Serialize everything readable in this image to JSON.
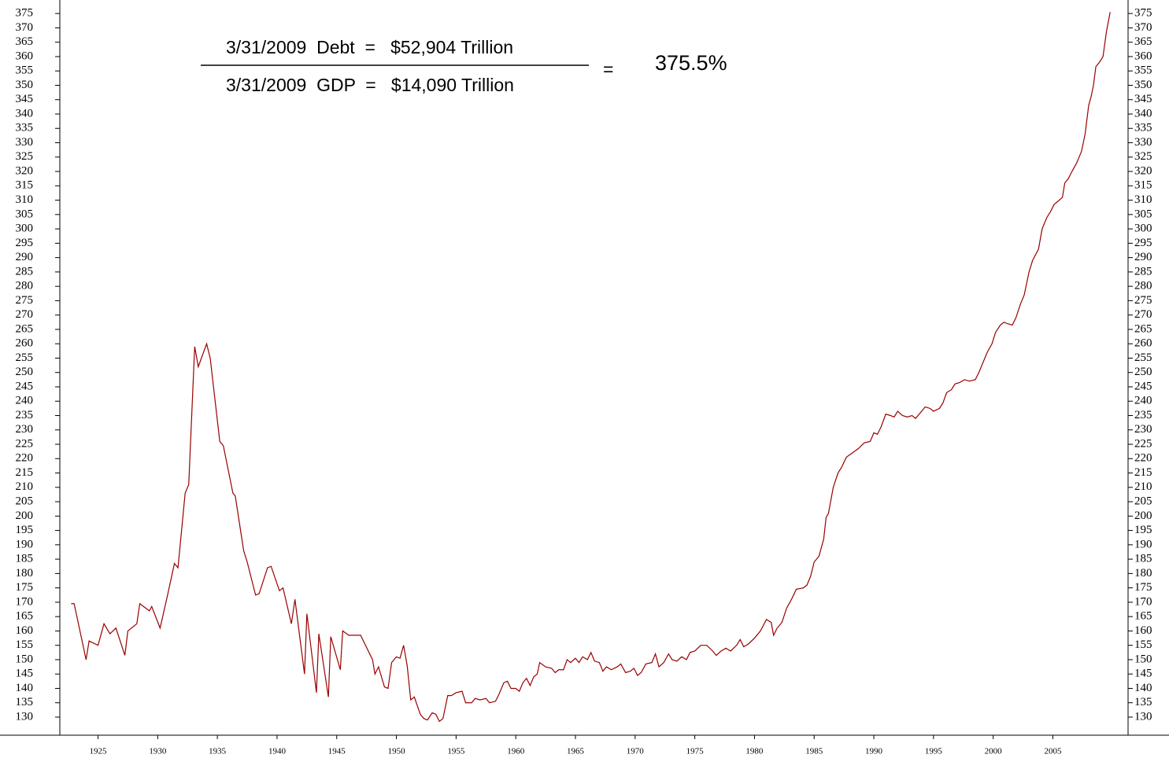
{
  "chart_data": {
    "type": "line",
    "annotations": {
      "numerator": "3/31/2009  Debt  =   $52,904 Trillion",
      "denominator": "3/31/2009  GDP  =   $14,090 Trillion",
      "equals": "=",
      "result": "375.5%"
    },
    "series": [
      {
        "color": "#990000",
        "x": [
          1922.75,
          1923,
          1924,
          1924.25,
          1925,
          1925.5,
          1926,
          1926.5,
          1927.25,
          1927.5,
          1928.25,
          1928.5,
          1929.3,
          1929.5,
          1930.2,
          1930.8,
          1931.4,
          1931.7,
          1932.3,
          1932.6,
          1933.1,
          1933.4,
          1934.1,
          1934.4,
          1935.2,
          1935.5,
          1936.3,
          1936.5,
          1937.2,
          1937.5,
          1938.2,
          1938.5,
          1939.2,
          1939.5,
          1940.2,
          1940.5,
          1941.2,
          1941.5,
          1942.3,
          1942.5,
          1943.3,
          1943.5,
          1944.3,
          1944.5,
          1945.3,
          1945.5,
          1946,
          1947,
          1948,
          1948.2,
          1948.5,
          1949,
          1949.3,
          1949.6,
          1950,
          1950.3,
          1950.6,
          1950.9,
          1951.2,
          1951.5,
          1952,
          1952.3,
          1952.6,
          1953,
          1953.3,
          1953.6,
          1953.9,
          1954.3,
          1954.6,
          1955,
          1955.5,
          1955.8,
          1956.3,
          1956.6,
          1957,
          1957.5,
          1957.8,
          1958.3,
          1958.6,
          1959,
          1959.3,
          1959.6,
          1960,
          1960.3,
          1960.6,
          1960.9,
          1961.2,
          1961.5,
          1961.8,
          1962,
          1962.5,
          1963,
          1963.3,
          1963.6,
          1964,
          1964.3,
          1964.6,
          1965,
          1965.3,
          1965.6,
          1966,
          1966.3,
          1966.6,
          1967,
          1967.3,
          1967.6,
          1968,
          1968.5,
          1968.8,
          1969.2,
          1969.6,
          1969.9,
          1970.2,
          1970.5,
          1970.9,
          1971.4,
          1971.7,
          1972,
          1972.4,
          1972.8,
          1973.1,
          1973.5,
          1973.9,
          1974.3,
          1974.6,
          1975,
          1975.5,
          1976,
          1976.5,
          1976.8,
          1977.2,
          1977.6,
          1978,
          1978.5,
          1978.8,
          1979.1,
          1979.5,
          1980,
          1980.5,
          1981,
          1981.4,
          1981.6,
          1981.9,
          1982.3,
          1982.7,
          1983.1,
          1983.5,
          1984.1,
          1984.4,
          1984.7,
          1985,
          1985.4,
          1985.8,
          1986,
          1986.2,
          1986.6,
          1987,
          1987.3,
          1987.7,
          1988.2,
          1988.7,
          1989.2,
          1989.7,
          1990,
          1990.3,
          1990.6,
          1991,
          1991.4,
          1991.7,
          1992,
          1992.4,
          1992.8,
          1993.2,
          1993.5,
          1993.9,
          1994.3,
          1994.7,
          1995,
          1995.5,
          1995.8,
          1996.1,
          1996.5,
          1996.8,
          1997.2,
          1997.6,
          1998,
          1998.5,
          1998.8,
          1999.1,
          1999.5,
          1999.9,
          2000.2,
          2000.6,
          2000.9,
          2001.2,
          2001.6,
          2001.9,
          2002.3,
          2002.6,
          2003,
          2003.3,
          2003.8,
          2004.1,
          2004.5,
          2004.8,
          2005.1,
          2005.4,
          2005.8,
          2006,
          2006.3,
          2006.6,
          2007,
          2007.4,
          2007.7,
          2008,
          2008.2,
          2008.4,
          2008.6,
          2008.9,
          2009.2,
          2009.5,
          2009.8
        ],
        "values": [
          169.5,
          169.5,
          150,
          156.5,
          155,
          162.5,
          159,
          161,
          151.5,
          160,
          162.5,
          169.5,
          167,
          168.5,
          161,
          172,
          183.5,
          182,
          208,
          211,
          259,
          252,
          260,
          255,
          226,
          224.5,
          208,
          207,
          188,
          184,
          172.5,
          173,
          182,
          182.5,
          174,
          175,
          162.5,
          171,
          145,
          166,
          138.5,
          159,
          137,
          158,
          146.5,
          160,
          158.5,
          158.5,
          150,
          145,
          147.5,
          140.5,
          140,
          149,
          151,
          150.5,
          155,
          148,
          136,
          137,
          131,
          129.5,
          129,
          131.5,
          131,
          128.5,
          129.5,
          137.5,
          137.5,
          138.5,
          139,
          135,
          135,
          136.5,
          136,
          136.5,
          135,
          135.5,
          138,
          142,
          142.5,
          140,
          140,
          139,
          142,
          143.5,
          141,
          144,
          145,
          149,
          147.5,
          147,
          145.5,
          146.5,
          146.5,
          150,
          149,
          150.5,
          149,
          151,
          150,
          152.5,
          149.5,
          149,
          146,
          147.5,
          146.5,
          147.5,
          148.5,
          145.5,
          146,
          147,
          144.5,
          145.5,
          148.5,
          149,
          152,
          147.5,
          149,
          152,
          150,
          149.5,
          151,
          150,
          152.5,
          153,
          155,
          155,
          153,
          151.5,
          153,
          154,
          153,
          155,
          157,
          154.5,
          155.5,
          157.5,
          160,
          164,
          163,
          158.5,
          161,
          163,
          168,
          171,
          174.5,
          175,
          176,
          179,
          184,
          186,
          192,
          199.5,
          201,
          210,
          215,
          217,
          220.5,
          222,
          223.5,
          225.5,
          226,
          229,
          228.5,
          231,
          235.5,
          235,
          234.5,
          236.5,
          235,
          234.5,
          235,
          234,
          236,
          238,
          237.5,
          236.5,
          237.5,
          239.5,
          243,
          244,
          246,
          246.5,
          247.5,
          247,
          247.5,
          250,
          253,
          257,
          260,
          264,
          266.5,
          267.5,
          267,
          266.5,
          269,
          274,
          277,
          285,
          289,
          293,
          300,
          304,
          306,
          308.5,
          309.5,
          311,
          316,
          317.5,
          320,
          323,
          327,
          333,
          343,
          346,
          350,
          356.5,
          358,
          360,
          369,
          375.5
        ]
      }
    ],
    "xlim": [
      1921.8,
      2011.3
    ],
    "xticks": [
      1925,
      1930,
      1935,
      1940,
      1945,
      1950,
      1955,
      1960,
      1965,
      1970,
      1975,
      1980,
      1985,
      1990,
      1995,
      2000,
      2005
    ],
    "ylim": [
      123.7,
      379.7
    ],
    "yticks": [
      130,
      135,
      140,
      145,
      150,
      155,
      160,
      165,
      170,
      175,
      180,
      185,
      190,
      195,
      200,
      205,
      210,
      215,
      220,
      225,
      230,
      235,
      240,
      245,
      250,
      255,
      260,
      265,
      270,
      275,
      280,
      285,
      290,
      295,
      300,
      305,
      310,
      315,
      320,
      325,
      330,
      335,
      340,
      345,
      350,
      355,
      360,
      365,
      370,
      375
    ]
  }
}
